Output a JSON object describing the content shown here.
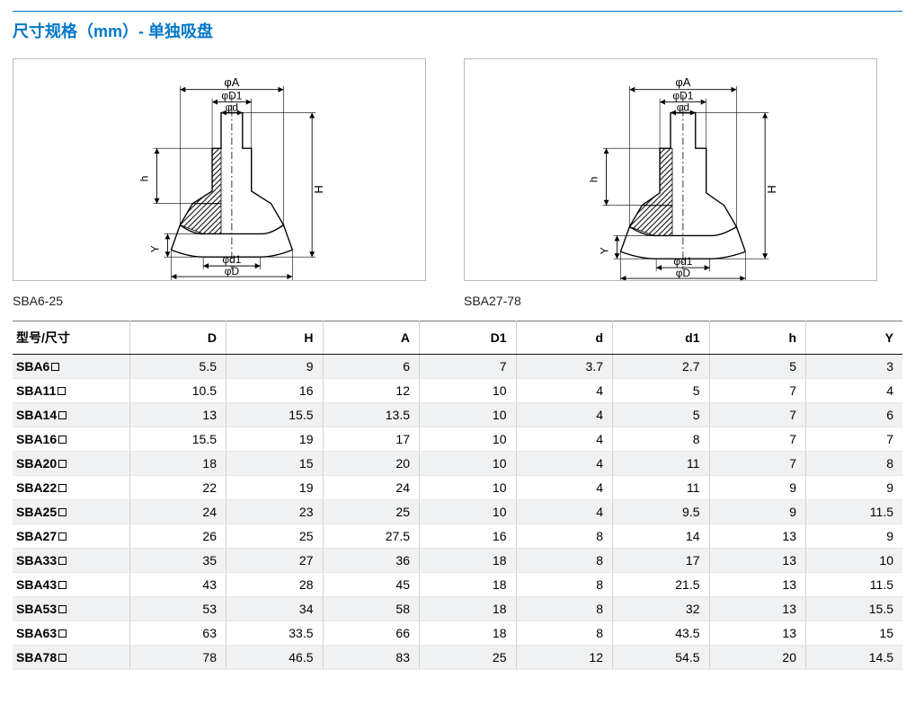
{
  "section_title": "尺寸规格（mm）- 单独吸盘",
  "diagrams": {
    "left_caption": "SBA6-25",
    "right_caption": "SBA27-78",
    "labels": {
      "phiA": "φA",
      "phiD1_top": "φD1",
      "phid": "φd",
      "H": "H",
      "h": "h",
      "Y": "Y",
      "phid1_bot": "φd1",
      "phiD": "φD"
    },
    "colors": {
      "line": "#000000",
      "hatch": "#000000",
      "panel_border": "#b9b9b9"
    }
  },
  "table": {
    "columns": [
      "型号/尺寸",
      "D",
      "H",
      "A",
      "D1",
      "d",
      "d1",
      "h",
      "Y"
    ],
    "column_sep_right": [
      true,
      true,
      true,
      true,
      true,
      true,
      true,
      true,
      false
    ],
    "header_fontsize_pt": 11,
    "body_fontsize_pt": 11,
    "stripe_color": "#f0f1f2",
    "background_color": "#ffffff",
    "border_color": "#e6e6e6",
    "header_top_border": "#7a7a7a",
    "header_bottom_border": "#111111",
    "rows": [
      {
        "model": "SBA6",
        "D": "5.5",
        "H": "9",
        "A": "6",
        "D1": "7",
        "d": "3.7",
        "d1": "2.7",
        "h": "5",
        "Y": "3"
      },
      {
        "model": "SBA11",
        "D": "10.5",
        "H": "16",
        "A": "12",
        "D1": "10",
        "d": "4",
        "d1": "5",
        "h": "7",
        "Y": "4"
      },
      {
        "model": "SBA14",
        "D": "13",
        "H": "15.5",
        "A": "13.5",
        "D1": "10",
        "d": "4",
        "d1": "5",
        "h": "7",
        "Y": "6"
      },
      {
        "model": "SBA16",
        "D": "15.5",
        "H": "19",
        "A": "17",
        "D1": "10",
        "d": "4",
        "d1": "8",
        "h": "7",
        "Y": "7"
      },
      {
        "model": "SBA20",
        "D": "18",
        "H": "15",
        "A": "20",
        "D1": "10",
        "d": "4",
        "d1": "11",
        "h": "7",
        "Y": "8"
      },
      {
        "model": "SBA22",
        "D": "22",
        "H": "19",
        "A": "24",
        "D1": "10",
        "d": "4",
        "d1": "11",
        "h": "9",
        "Y": "9"
      },
      {
        "model": "SBA25",
        "D": "24",
        "H": "23",
        "A": "25",
        "D1": "10",
        "d": "4",
        "d1": "9.5",
        "h": "9",
        "Y": "11.5"
      },
      {
        "model": "SBA27",
        "D": "26",
        "H": "25",
        "A": "27.5",
        "D1": "16",
        "d": "8",
        "d1": "14",
        "h": "13",
        "Y": "9"
      },
      {
        "model": "SBA33",
        "D": "35",
        "H": "27",
        "A": "36",
        "D1": "18",
        "d": "8",
        "d1": "17",
        "h": "13",
        "Y": "10"
      },
      {
        "model": "SBA43",
        "D": "43",
        "H": "28",
        "A": "45",
        "D1": "18",
        "d": "8",
        "d1": "21.5",
        "h": "13",
        "Y": "11.5"
      },
      {
        "model": "SBA53",
        "D": "53",
        "H": "34",
        "A": "58",
        "D1": "18",
        "d": "8",
        "d1": "32",
        "h": "13",
        "Y": "15.5"
      },
      {
        "model": "SBA63",
        "D": "63",
        "H": "33.5",
        "A": "66",
        "D1": "18",
        "d": "8",
        "d1": "43.5",
        "h": "13",
        "Y": "15"
      },
      {
        "model": "SBA78",
        "D": "78",
        "H": "46.5",
        "A": "83",
        "D1": "25",
        "d": "12",
        "d1": "54.5",
        "h": "20",
        "Y": "14.5"
      }
    ]
  }
}
